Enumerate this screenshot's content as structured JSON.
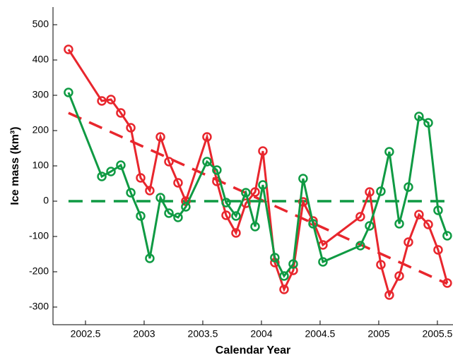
{
  "chart_data": {
    "type": "line",
    "xlabel": "Calendar Year",
    "ylabel": "Ice mass (km³)",
    "xlim": [
      2002.223,
      2005.633
    ],
    "ylim": [
      -350,
      550
    ],
    "xticks": [
      2002.5,
      2003,
      2003.5,
      2004,
      2004.5,
      2005,
      2005.5
    ],
    "yticks": [
      -300,
      -200,
      -100,
      0,
      100,
      200,
      300,
      400,
      500
    ],
    "x": [
      2002.355,
      2002.639,
      2002.717,
      2002.801,
      2002.886,
      2002.97,
      2003.048,
      2003.139,
      2003.211,
      2003.289,
      2003.355,
      2003.536,
      2003.62,
      2003.699,
      2003.783,
      2003.867,
      2003.946,
      2004.012,
      2004.114,
      2004.193,
      2004.271,
      2004.355,
      2004.44,
      2004.524,
      2004.843,
      2004.922,
      2005.018,
      2005.09,
      2005.175,
      2005.253,
      2005.343,
      2005.422,
      2005.506,
      2005.584
    ],
    "series": [
      {
        "color": "#e8262d",
        "values": [
          430,
          284,
          288,
          250,
          208,
          66,
          30,
          182,
          112,
          52,
          0,
          182,
          56,
          -40,
          -90,
          -6,
          26,
          142,
          -174,
          -250,
          -196,
          -2,
          -56,
          -124,
          -44,
          26,
          -180,
          -266,
          -212,
          -116,
          -38,
          -66,
          -138,
          -232
        ]
      },
      {
        "color": "#0f9a43",
        "values": [
          308,
          70,
          84,
          102,
          24,
          -42,
          -162,
          10,
          -34,
          -46,
          -16,
          112,
          88,
          -4,
          -42,
          24,
          -72,
          46,
          -160,
          -212,
          -178,
          64,
          -64,
          -172,
          -126,
          -70,
          28,
          140,
          -64,
          40,
          240,
          222,
          -26,
          -98
        ]
      }
    ],
    "trends": [
      {
        "color": "#e8262d",
        "x": [
          2002.355,
          2005.584
        ],
        "values": [
          250,
          -234
        ]
      },
      {
        "color": "#0f9a43",
        "x": [
          2002.355,
          2005.584
        ],
        "values": [
          0,
          0
        ]
      }
    ]
  }
}
